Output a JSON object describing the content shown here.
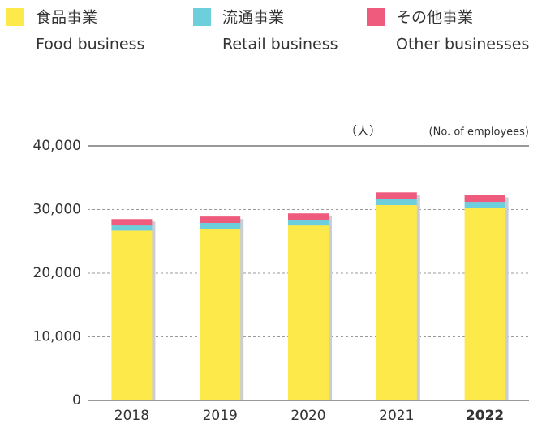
{
  "chart_data": {
    "type": "stacked_bar",
    "unit_label": "（人）",
    "unit_label_en": "(No. of employees)",
    "categories": [
      "2018",
      "2019",
      "2020",
      "2021",
      "2022"
    ],
    "highlight_index": 4,
    "series": [
      {
        "name": "食品事業",
        "name_en": "Food business",
        "color": "#fde94a",
        "values": [
          26700,
          27000,
          27500,
          30700,
          30300
        ]
      },
      {
        "name": "流通事業",
        "name_en": "Retail business",
        "color": "#6ecfdc",
        "values": [
          800,
          900,
          800,
          900,
          900
        ]
      },
      {
        "name": "その他事業",
        "name_en": "Other businesses",
        "color": "#ee5b7c",
        "values": [
          1000,
          1000,
          1100,
          1100,
          1100
        ]
      }
    ],
    "ylim": [
      0,
      40000
    ],
    "yticks": [
      0,
      {
        "value": 10000,
        "label": "10,000"
      },
      {
        "value": 20000,
        "label": "20,000"
      },
      {
        "value": 30000,
        "label": "30,000"
      },
      {
        "value": 40000,
        "label": "40,000"
      }
    ],
    "grid": true
  }
}
